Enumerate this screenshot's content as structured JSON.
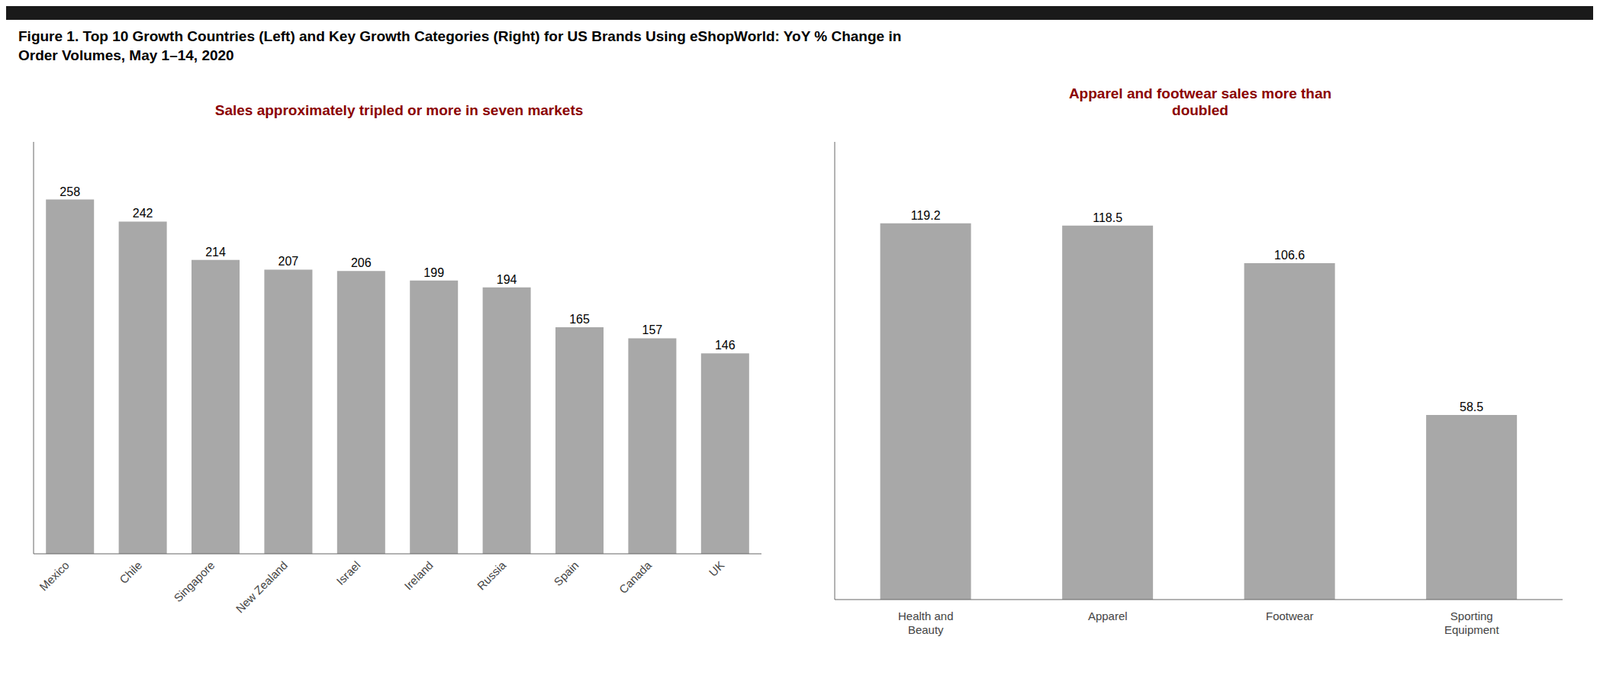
{
  "title": "Figure 1. Top 10 Growth Countries (Left) and Key Growth Categories (Right) for US Brands Using eShopWorld: YoY % Change in\nOrder Volumes, May 1–14, 2020",
  "chart_data": [
    {
      "type": "bar",
      "subtitle": "Sales approximately tripled or more in seven markets",
      "categories": [
        "Mexico",
        "Chile",
        "Singapore",
        "New Zealand",
        "Israel",
        "Ireland",
        "Russia",
        "Spain",
        "Canada",
        "UK"
      ],
      "values": [
        258,
        242,
        214,
        207,
        206,
        199,
        194,
        165,
        157,
        146
      ],
      "color": "#a8a8a8",
      "ylim": [
        0,
        300
      ],
      "data_labels": true,
      "grid": false,
      "tick_labels": "x"
    },
    {
      "type": "bar",
      "subtitle": "Apparel and footwear sales more than\ndoubled",
      "categories": [
        "Health and\nBeauty",
        "Apparel",
        "Footwear",
        "Sporting\nEquipment"
      ],
      "values": [
        119.2,
        118.5,
        106.6,
        58.5
      ],
      "color": "#a8a8a8",
      "ylim": [
        0,
        145
      ],
      "data_labels": true,
      "grid": false,
      "tick_labels": "x"
    }
  ]
}
